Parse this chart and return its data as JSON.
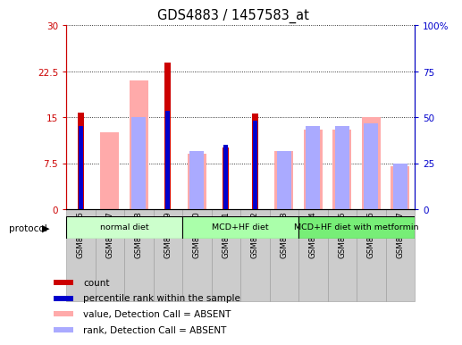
{
  "title": "GDS4883 / 1457583_at",
  "samples": [
    "GSM878116",
    "GSM878117",
    "GSM878118",
    "GSM878119",
    "GSM878120",
    "GSM878121",
    "GSM878122",
    "GSM878123",
    "GSM878124",
    "GSM878125",
    "GSM878126",
    "GSM878127"
  ],
  "count": [
    15.8,
    0,
    0,
    24.0,
    0,
    10.0,
    15.6,
    0,
    0,
    0,
    0,
    0
  ],
  "percentile_rank": [
    13.5,
    0,
    0,
    16.0,
    0,
    10.5,
    14.5,
    0,
    0,
    0,
    0,
    0
  ],
  "value_absent": [
    0,
    12.5,
    21.0,
    0,
    9.0,
    0,
    0,
    9.5,
    13.0,
    13.0,
    15.0,
    7.0
  ],
  "rank_absent": [
    0,
    0,
    15.0,
    0,
    9.5,
    0,
    0,
    9.5,
    13.5,
    13.5,
    14.0,
    7.5
  ],
  "count_color": "#cc0000",
  "percentile_color": "#0000cc",
  "value_absent_color": "#ffaaaa",
  "rank_absent_color": "#aaaaff",
  "ylim_left": [
    0,
    30
  ],
  "ylim_right": [
    0,
    100
  ],
  "yticks_left": [
    0,
    7.5,
    15,
    22.5,
    30
  ],
  "yticks_right": [
    0,
    25,
    50,
    75,
    100
  ],
  "ytick_labels_left": [
    "0",
    "7.5",
    "15",
    "22.5",
    "30"
  ],
  "ytick_labels_right": [
    "0",
    "25",
    "50",
    "75",
    "100%"
  ],
  "protocols": [
    {
      "label": "normal diet",
      "start": 0,
      "end": 4,
      "color": "#ccffcc"
    },
    {
      "label": "MCD+HF diet",
      "start": 4,
      "end": 8,
      "color": "#aaffaa"
    },
    {
      "label": "MCD+HF diet with metformin",
      "start": 8,
      "end": 12,
      "color": "#77ee77"
    }
  ],
  "legend_items": [
    {
      "label": "count",
      "color": "#cc0000"
    },
    {
      "label": "percentile rank within the sample",
      "color": "#0000cc"
    },
    {
      "label": "value, Detection Call = ABSENT",
      "color": "#ffaaaa"
    },
    {
      "label": "rank, Detection Call = ABSENT",
      "color": "#aaaaff"
    }
  ],
  "background_color": "#ffffff",
  "plot_bg": "#ffffff",
  "left_axis_color": "#cc0000",
  "right_axis_color": "#0000cc",
  "protocol_label": "protocol"
}
